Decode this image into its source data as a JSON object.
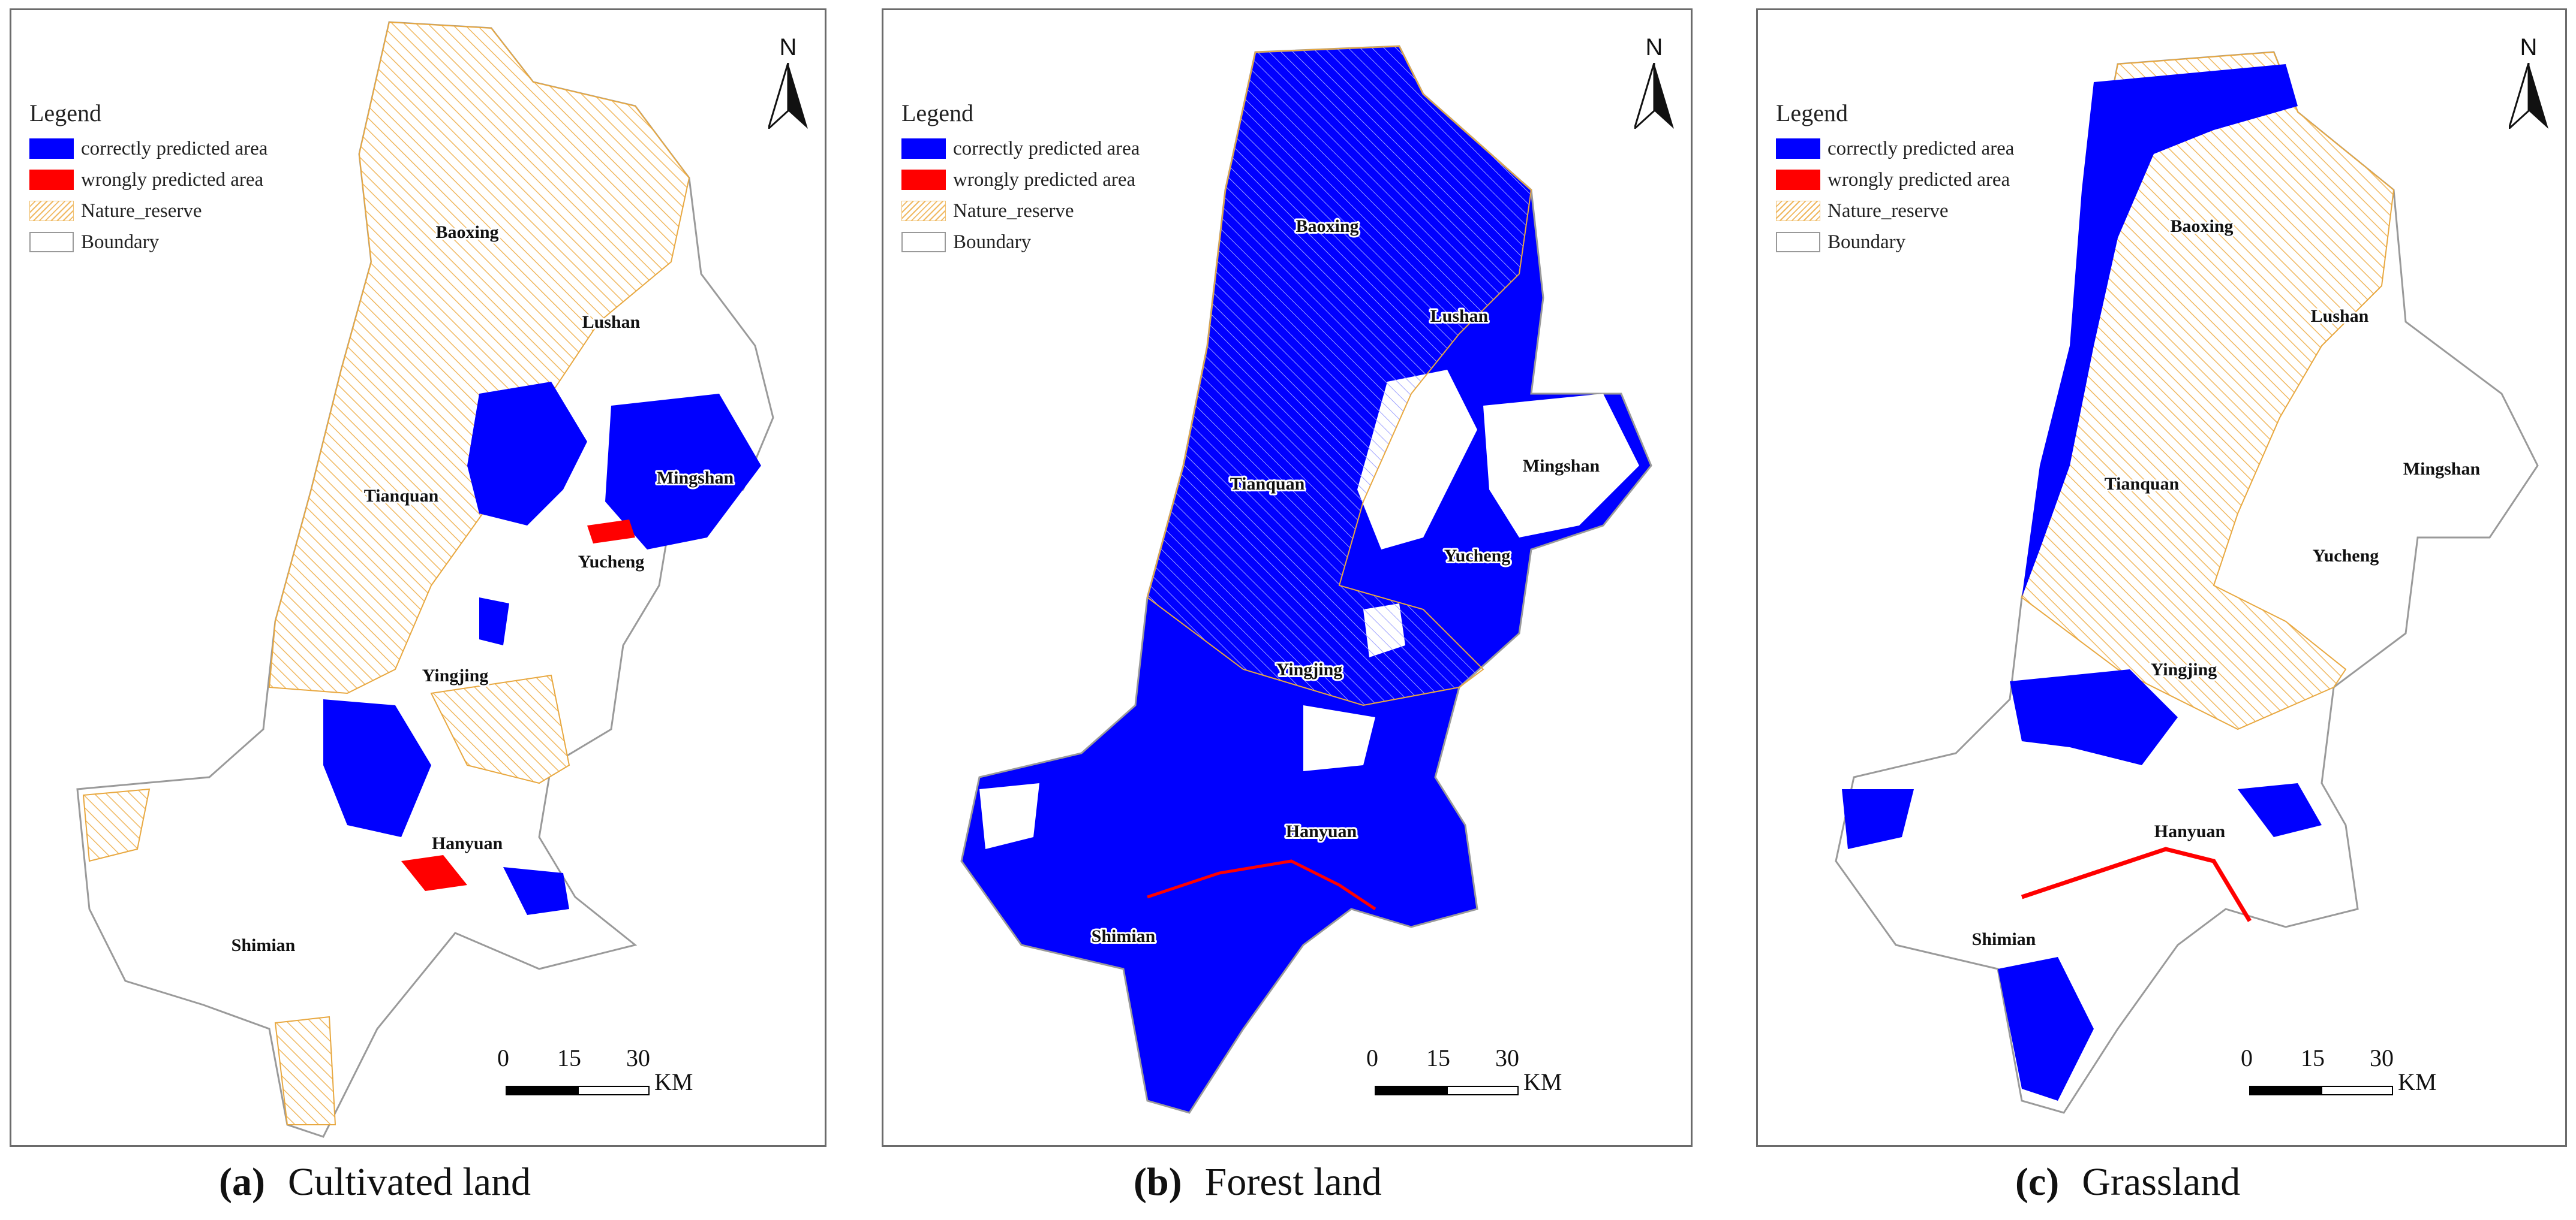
{
  "legend": {
    "title": "Legend",
    "items": [
      {
        "label": "correctly predicted area",
        "color": "#0000ff"
      },
      {
        "label": "wrongly predicted area",
        "color": "#ff0000"
      },
      {
        "label": "Nature_reserve",
        "color": "#f0b860"
      },
      {
        "label": "Boundary",
        "color": "#999999"
      }
    ]
  },
  "north_label": "N",
  "counties": [
    "Baoxing",
    "Lushan",
    "Mingshan",
    "Tianquan",
    "Yucheng",
    "Yingjing",
    "Hanyuan",
    "Shimian"
  ],
  "scale_bar": {
    "ticks": [
      "0",
      "15",
      "30"
    ],
    "unit": "KM"
  },
  "panels": [
    {
      "id": "a",
      "label": "(a)",
      "title": "Cultivated land"
    },
    {
      "id": "b",
      "label": "(b)",
      "title": "Forest land"
    },
    {
      "id": "c",
      "label": "(c)",
      "title": "Grassland"
    }
  ],
  "colors": {
    "correct": "#0000ff",
    "wrong": "#ff0000",
    "reserve": "#f0b860",
    "boundary": "#9a9a9a"
  }
}
